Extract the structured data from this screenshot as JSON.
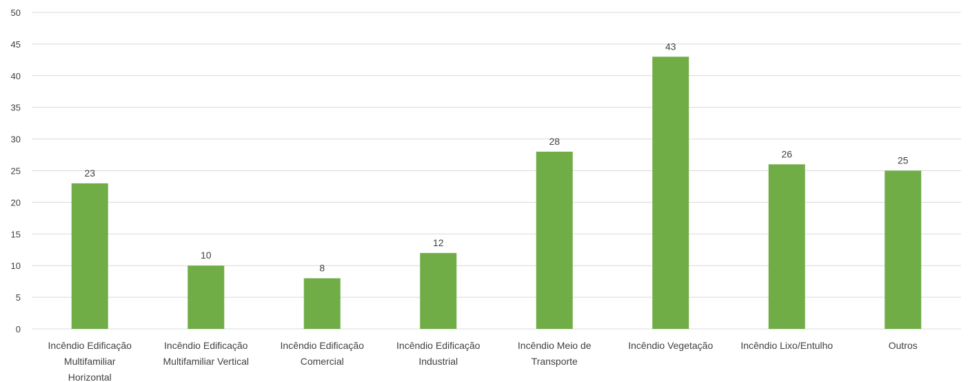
{
  "chart_data": {
    "type": "bar",
    "categories": [
      [
        "Incêndio Edificação",
        "Multifamiliar",
        "Horizontal"
      ],
      [
        "Incêndio Edificação",
        "Multifamiliar Vertical"
      ],
      [
        "Incêndio Edificação",
        "Comercial"
      ],
      [
        "Incêndio Edificação",
        "Industrial"
      ],
      [
        "Incêndio Meio de",
        "Transporte"
      ],
      [
        "Incêndio Vegetação"
      ],
      [
        "Incêndio Lixo/Entulho"
      ],
      [
        "Outros"
      ]
    ],
    "values": [
      23,
      10,
      8,
      12,
      28,
      43,
      26,
      25
    ],
    "ylim": [
      0,
      50
    ],
    "yticks": [
      0,
      5,
      10,
      15,
      20,
      25,
      30,
      35,
      40,
      45,
      50
    ],
    "grid": true,
    "bar_color": "#70AD47",
    "grid_color": "#D9D9D9",
    "data_labels": true
  }
}
